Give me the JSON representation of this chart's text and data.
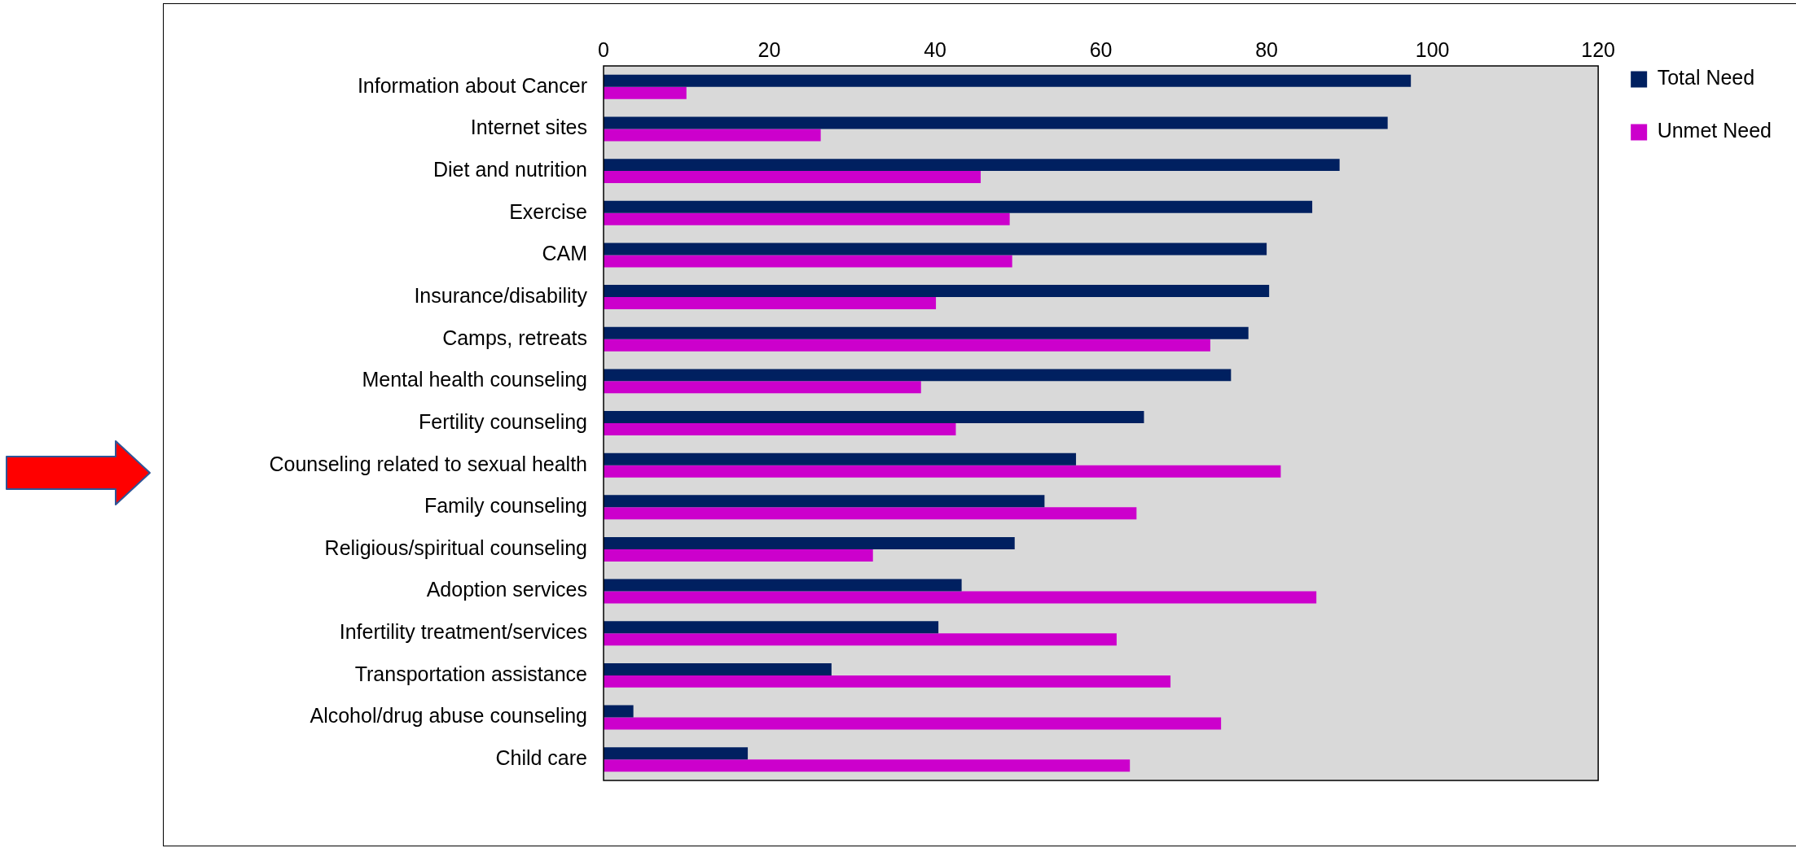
{
  "chart_data": {
    "type": "bar",
    "orientation": "horizontal",
    "categories": [
      "Information about Cancer",
      "Internet sites",
      "Diet and nutrition",
      "Exercise",
      "CAM",
      "Insurance/disability",
      "Camps, retreats",
      "Mental health counseling",
      "Fertility counseling",
      "Counseling related to sexual health",
      "Family counseling",
      "Religious/spiritual counseling",
      "Adoption services",
      "Infertility treatment/services",
      "Transportation assistance",
      "Alcohol/drug abuse counseling",
      "Child care"
    ],
    "series": [
      {
        "name": "Total Need",
        "color": "#002060",
        "values": [
          97.4,
          94.6,
          88.8,
          85.5,
          80,
          80.3,
          77.8,
          75.7,
          65.2,
          57,
          53.2,
          49.6,
          43.2,
          40.4,
          27.5,
          3.6,
          17.4
        ]
      },
      {
        "name": "Unmet Need",
        "color": "#cc00cc",
        "values": [
          10,
          26.2,
          45.5,
          49,
          49.3,
          40.1,
          73.2,
          38.3,
          42.5,
          81.7,
          64.3,
          32.5,
          86,
          61.9,
          68.4,
          74.5,
          63.5
        ]
      }
    ],
    "xlim": [
      0,
      120
    ],
    "xticks": [
      0,
      20,
      40,
      60,
      80,
      100,
      120
    ],
    "grid": false,
    "legend": "right"
  }
}
